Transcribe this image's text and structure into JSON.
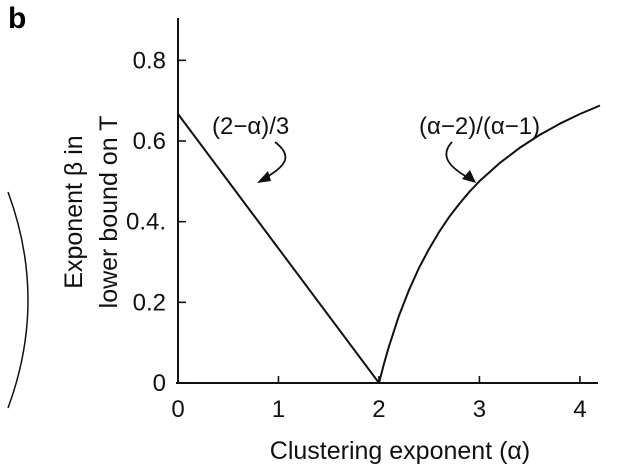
{
  "panel_label": "b",
  "chart_data": {
    "type": "line",
    "xlabel": "Clustering exponent (α)",
    "ylabel_line1": "Exponent β in",
    "ylabel_line2": "lower bound on T",
    "xlim": [
      0,
      4.2
    ],
    "ylim": [
      0,
      0.9
    ],
    "x_ticks": [
      0,
      1,
      2,
      3,
      4
    ],
    "x_tick_labels": [
      "0",
      "1",
      "2",
      "3",
      "4"
    ],
    "y_ticks": [
      0,
      0.2,
      0.4,
      0.6,
      0.8
    ],
    "y_tick_labels": [
      "0",
      "0.2",
      "0.4.",
      "0.6",
      "0.8"
    ],
    "grid": false,
    "series": [
      {
        "formula": "(2−α)/3",
        "x": [
          0,
          2
        ],
        "y": [
          0.667,
          0
        ]
      },
      {
        "formula": "(α−2)/(α−1)",
        "x": [
          2.0,
          2.05,
          2.1,
          2.2,
          2.3,
          2.4,
          2.5,
          2.6,
          2.7,
          2.8,
          2.9,
          3.0,
          3.2,
          3.4,
          3.6,
          3.8,
          4.0,
          4.2
        ],
        "y": [
          0,
          0.048,
          0.091,
          0.167,
          0.231,
          0.286,
          0.333,
          0.375,
          0.412,
          0.444,
          0.474,
          0.5,
          0.545,
          0.583,
          0.615,
          0.643,
          0.667,
          0.688
        ]
      }
    ],
    "annotations": [
      {
        "text": "(2−α)/3"
      },
      {
        "text": "(α−2)/(α−1)"
      }
    ]
  }
}
